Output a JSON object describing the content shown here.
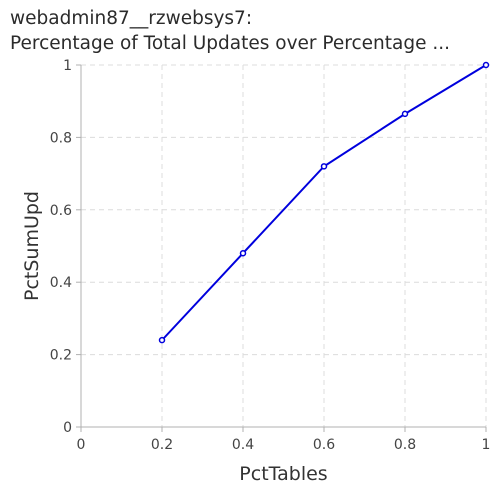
{
  "title_lines": [
    "webadmin87__rzwebsys7:",
    "Percentage of Total Updates over Percentage ..."
  ],
  "chart_data": {
    "type": "line",
    "title": "webadmin87__rzwebsys7: Percentage of Total Updates over Percentage ...",
    "xlabel": "PctTables",
    "ylabel": "PctSumUpd",
    "xlim": [
      0,
      1
    ],
    "ylim": [
      0,
      1
    ],
    "x_ticks": [
      "0",
      "0.2",
      "0.4",
      "0.6",
      "0.8",
      "1"
    ],
    "y_ticks": [
      "0",
      "0.2",
      "0.4",
      "0.6",
      "0.8",
      "1"
    ],
    "grid": true,
    "series": [
      {
        "color": "#0000dd",
        "x": [
          0.2,
          0.4,
          0.6,
          0.8,
          1.0
        ],
        "y": [
          0.24,
          0.48,
          0.72,
          0.865,
          1.0
        ]
      }
    ]
  }
}
